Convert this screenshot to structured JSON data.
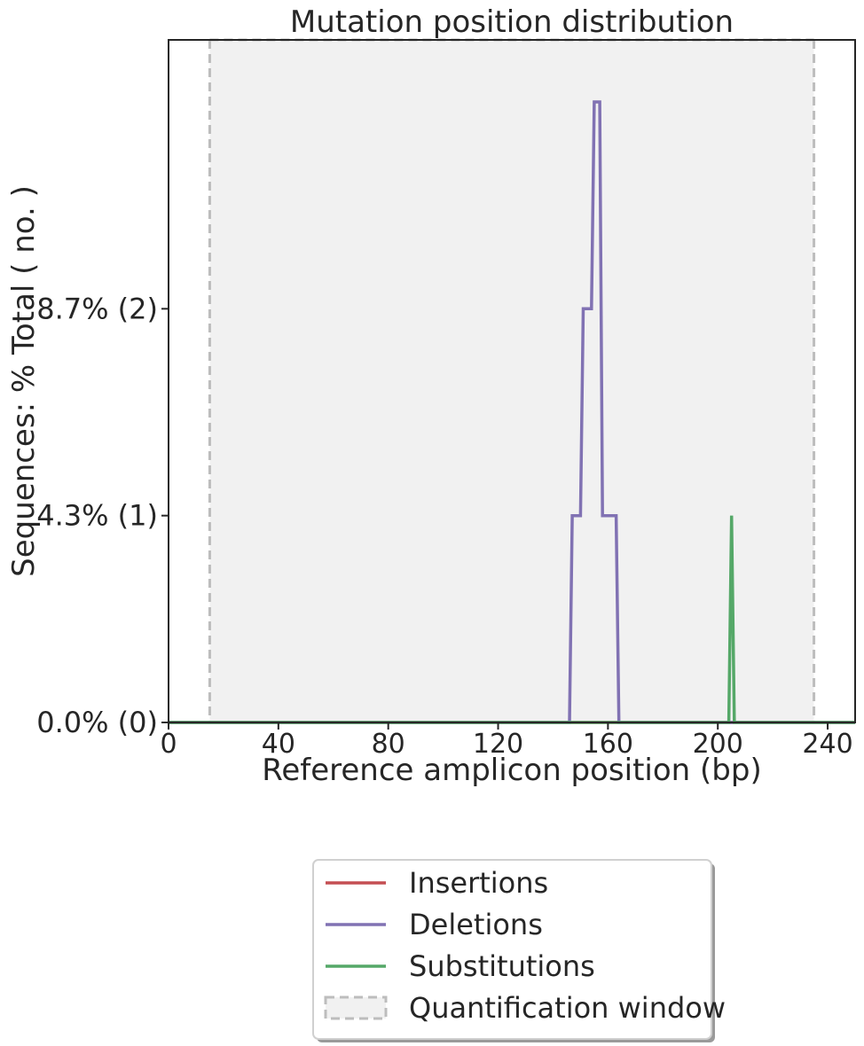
{
  "chart_data": {
    "type": "line",
    "title": "Mutation position distribution",
    "xlabel": "Reference amplicon position (bp)",
    "ylabel": "Sequences: % Total ( no. )",
    "xlim": [
      0,
      250
    ],
    "ylim": [
      0,
      3.3
    ],
    "xticks": [
      0,
      40,
      80,
      120,
      160,
      200,
      240
    ],
    "yticks": [
      {
        "value": 0,
        "label": "0.0% (0)"
      },
      {
        "value": 1,
        "label": "4.3% (1)"
      },
      {
        "value": 2,
        "label": "8.7% (2)"
      }
    ],
    "quantification_window": [
      15,
      235
    ],
    "series": [
      {
        "name": "Insertions",
        "color": "#c44e52",
        "x": [
          0,
          250
        ],
        "y": [
          0,
          0
        ]
      },
      {
        "name": "Deletions",
        "color": "#8172b3",
        "x": [
          0,
          146,
          147,
          150,
          151,
          153,
          154,
          155,
          156,
          157,
          158,
          160,
          163,
          164,
          250
        ],
        "y": [
          0,
          0,
          1,
          1,
          2,
          2,
          2,
          3,
          3,
          3,
          1,
          1,
          1,
          0,
          0
        ]
      },
      {
        "name": "Substitutions",
        "color": "#55a868",
        "x": [
          0,
          204,
          205,
          206,
          250
        ],
        "y": [
          0,
          0,
          1,
          0,
          0
        ]
      }
    ],
    "legend": {
      "placement": "below",
      "entries": [
        {
          "label": "Insertions",
          "color": "#c44e52",
          "kind": "line"
        },
        {
          "label": "Deletions",
          "color": "#8172b3",
          "kind": "line"
        },
        {
          "label": "Substitutions",
          "color": "#55a868",
          "kind": "line"
        },
        {
          "label": "Quantification window",
          "color": "#bdbdbd",
          "kind": "patch"
        }
      ]
    },
    "grid": false
  }
}
